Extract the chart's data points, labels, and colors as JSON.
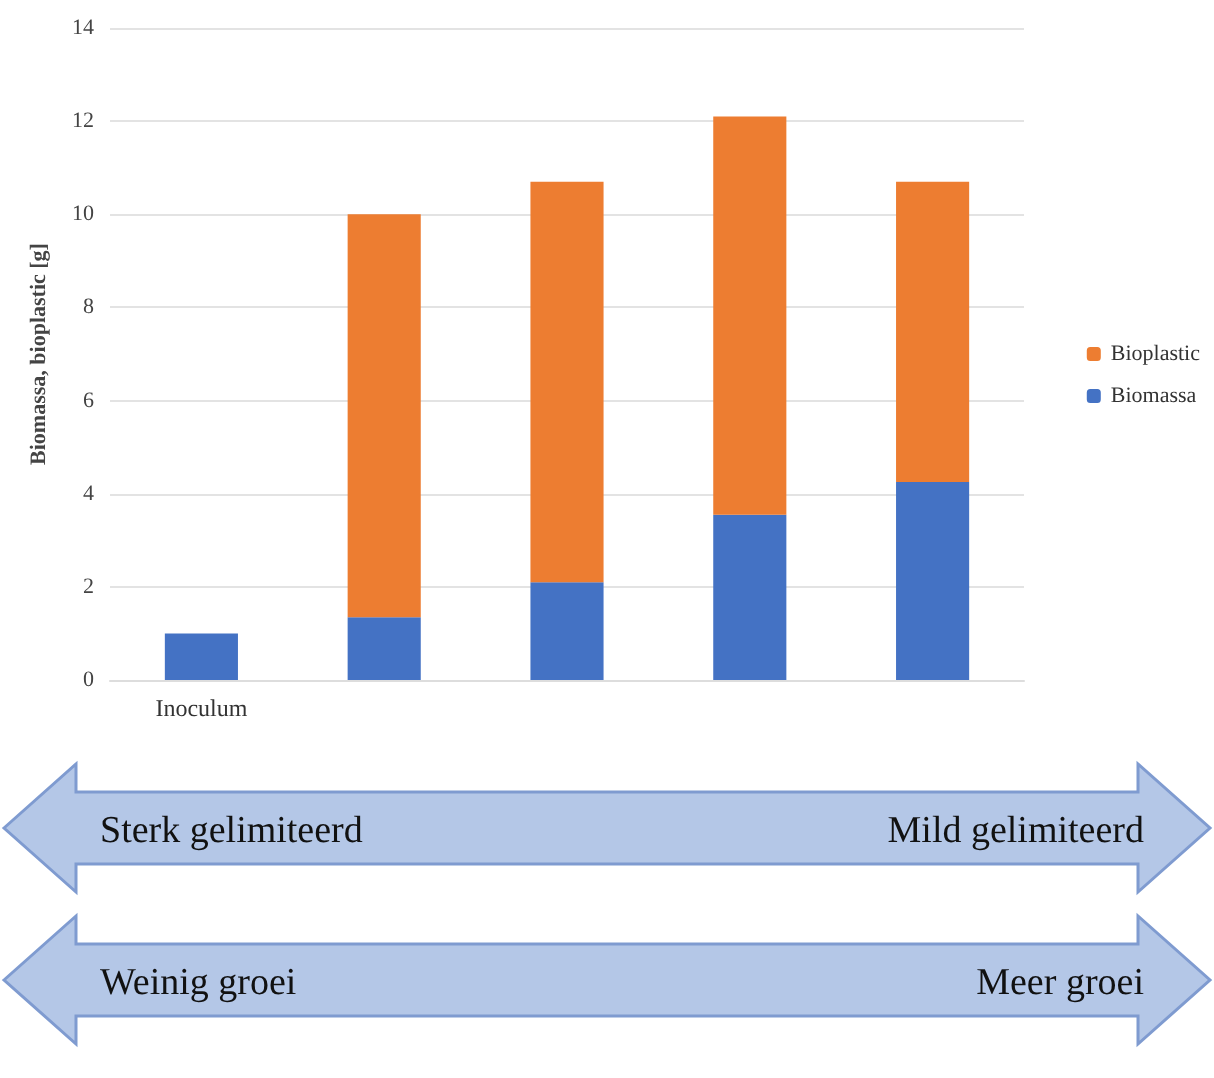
{
  "chart_data": {
    "type": "bar",
    "ylabel": "Biomassa, bioplastic [g]",
    "categories": [
      "Inoculum",
      null,
      null,
      null,
      null
    ],
    "series": [
      {
        "name": "Biomassa",
        "color": "#4472c4",
        "values": [
          1.0,
          1.35,
          2.1,
          3.55,
          4.25
        ]
      },
      {
        "name": "Bioplastic",
        "color": "#ed7d31",
        "values": [
          null,
          8.65,
          8.6,
          8.55,
          6.45
        ]
      }
    ],
    "stacked": true,
    "ylim": [
      0,
      14
    ],
    "yticks": [
      0,
      2,
      4,
      6,
      8,
      10,
      12,
      14
    ],
    "grid": "y",
    "legend": "right",
    "annotations": [
      "Sterk gelimiteerd",
      "Mild gelimiteerd",
      "Weinig groei",
      "Meer groei"
    ]
  }
}
